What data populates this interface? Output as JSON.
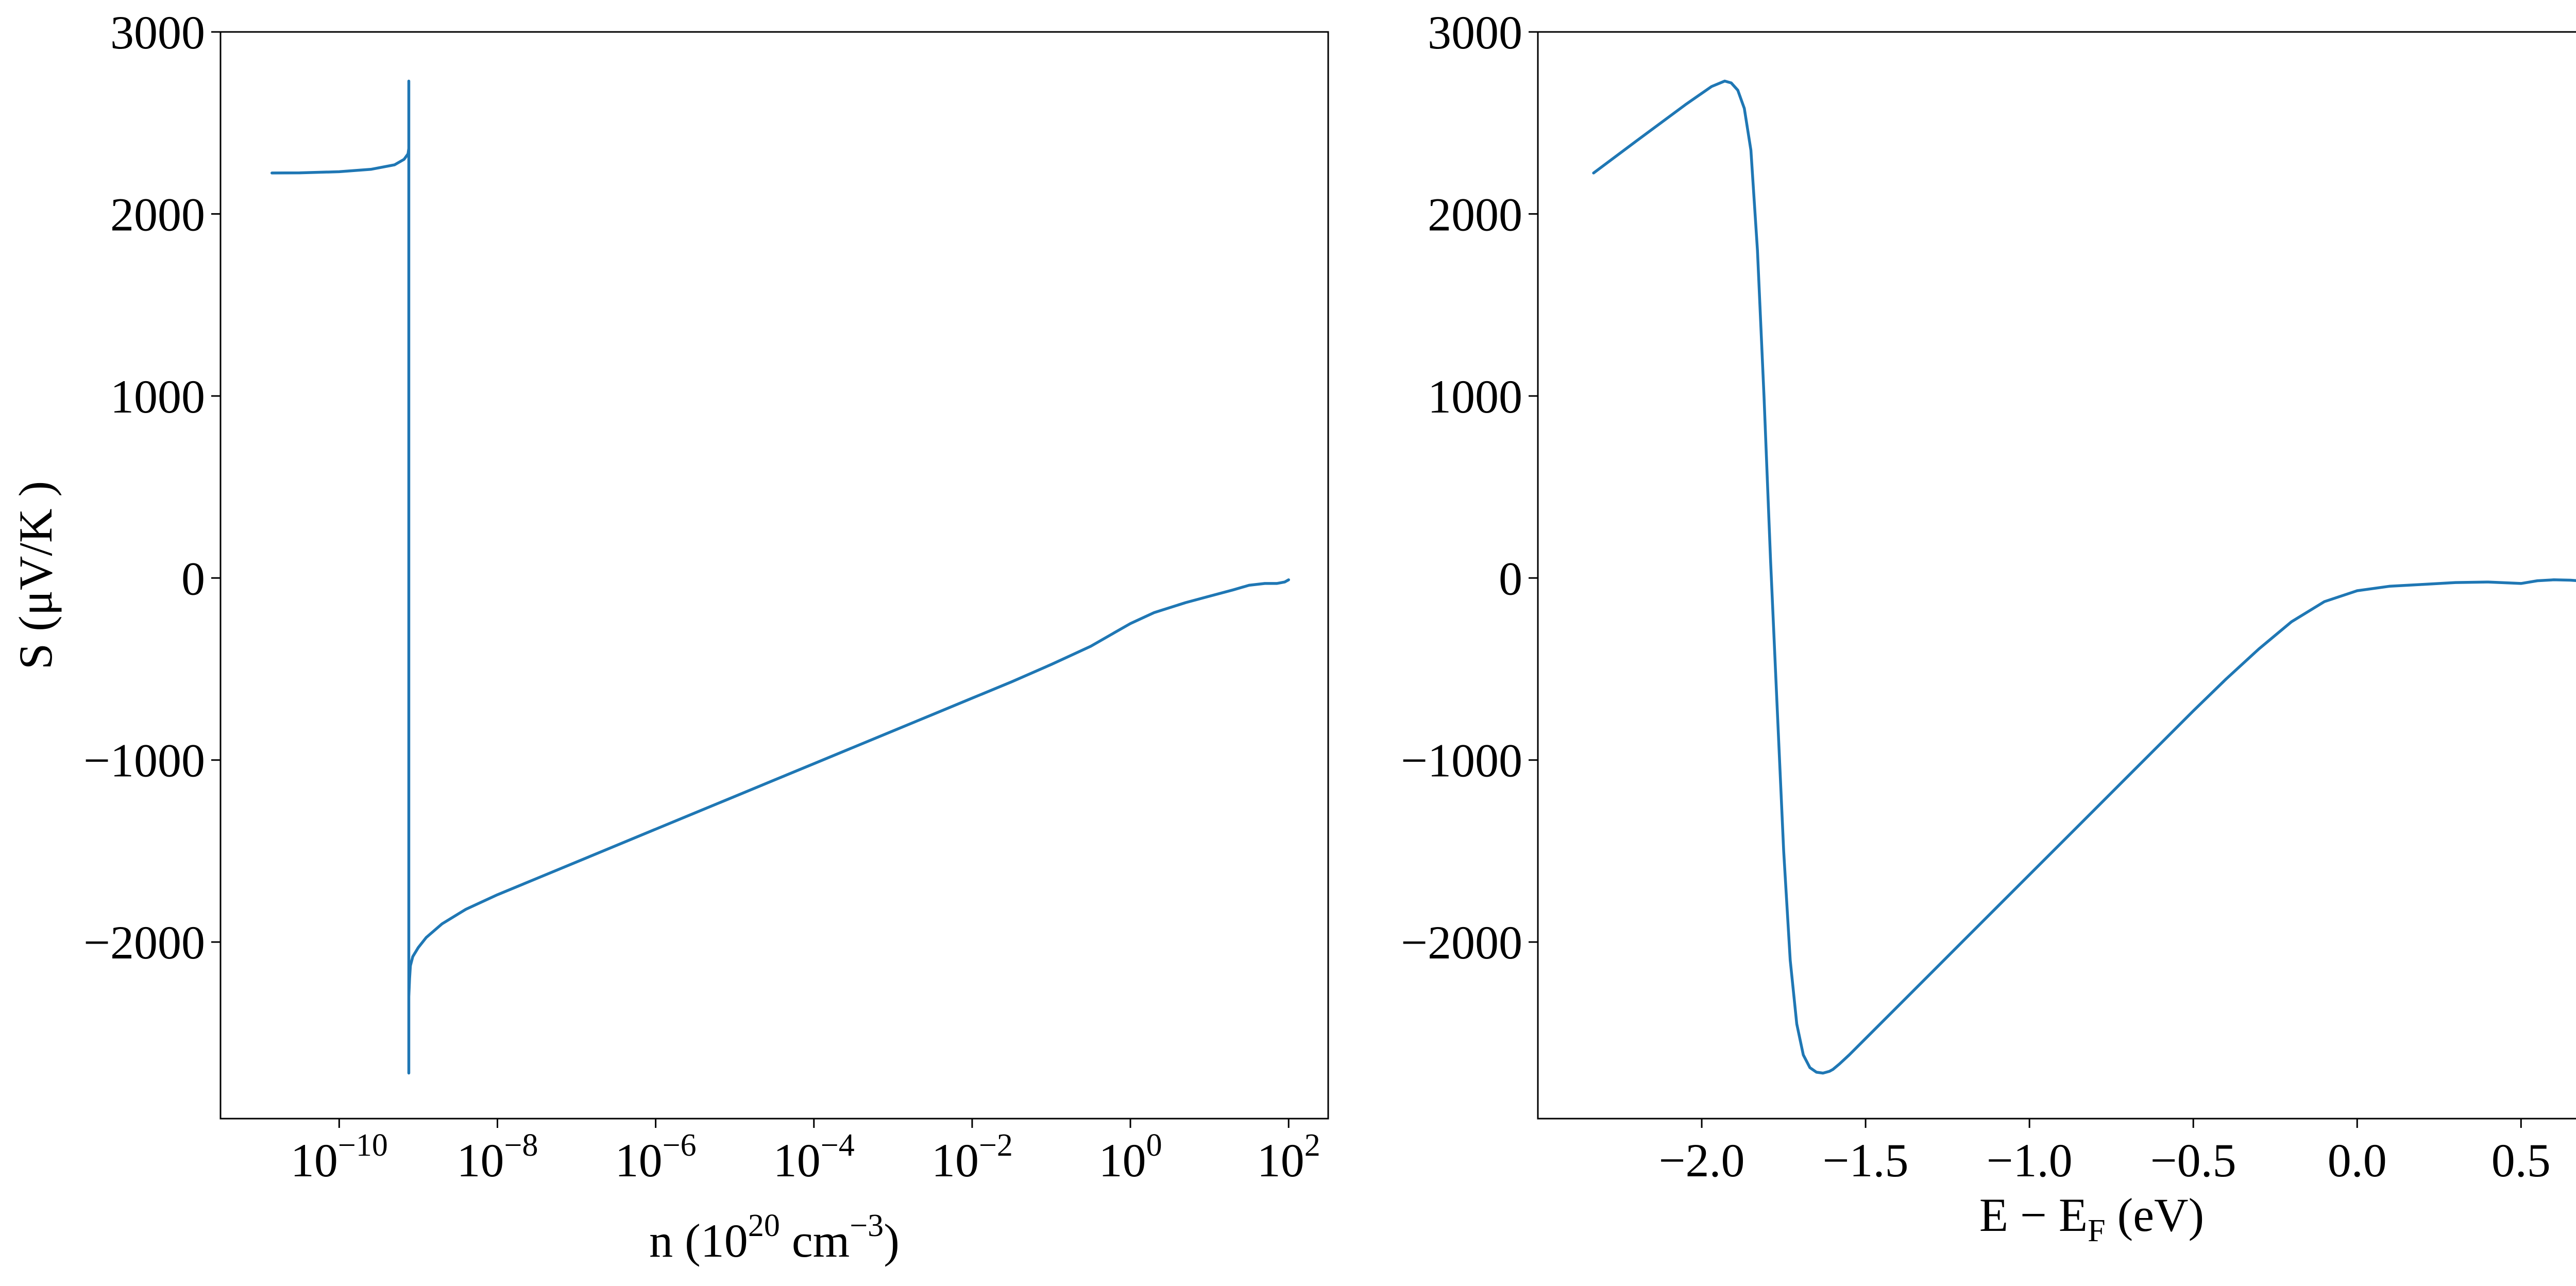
{
  "chart_data": [
    {
      "type": "line",
      "title": "",
      "xscale": "log",
      "xlabel": {
        "base": "n (10",
        "sup1": "20",
        "mid": " cm",
        "sup2": "−3",
        "end": ")"
      },
      "ylabel": "S (μV/K )",
      "xlim_log10": [
        -11.5,
        2.5
      ],
      "ylim": [
        -2970,
        3000
      ],
      "x_ticks": [
        {
          "exp": -10,
          "base": "10",
          "sup": "−10"
        },
        {
          "exp": -8,
          "base": "10",
          "sup": "−8"
        },
        {
          "exp": -6,
          "base": "10",
          "sup": "−6"
        },
        {
          "exp": -4,
          "base": "10",
          "sup": "−4"
        },
        {
          "exp": -2,
          "base": "10",
          "sup": "−2"
        },
        {
          "exp": 0,
          "base": "10",
          "sup": "0"
        },
        {
          "exp": 2,
          "base": "10",
          "sup": "2"
        }
      ],
      "y_ticks": [
        {
          "value": 3000,
          "label": "3000"
        },
        {
          "value": 2000,
          "label": "2000"
        },
        {
          "value": 1000,
          "label": "1000"
        },
        {
          "value": 0,
          "label": "0"
        },
        {
          "value": -1000,
          "label": "−1000"
        },
        {
          "value": -2000,
          "label": "−2000"
        }
      ],
      "series": [
        {
          "log10_x": [
            -10.85,
            -10.5,
            -10.0,
            -9.6,
            -9.3,
            -9.18,
            -9.13,
            -9.12,
            -9.12,
            -9.12,
            -9.12,
            -9.12,
            -9.11,
            -9.1,
            -9.07,
            -9.0,
            -8.9,
            -8.7,
            -8.4,
            -8.0,
            -7.5,
            -7.0,
            -6.5,
            -6.0,
            -5.5,
            -5.0,
            -4.5,
            -4.0,
            -3.5,
            -3.0,
            -2.5,
            -2.0,
            -1.5,
            -1.0,
            -0.5,
            -0.2,
            0.0,
            0.3,
            0.7,
            1.0,
            1.3,
            1.5,
            1.7,
            1.85,
            1.95,
            2.0
          ],
          "y": [
            2225,
            2226,
            2232,
            2245,
            2270,
            2300,
            2330,
            2360,
            2730,
            800,
            -2720,
            -2300,
            -2200,
            -2130,
            -2080,
            -2030,
            -1975,
            -1900,
            -1820,
            -1740,
            -1650,
            -1560,
            -1470,
            -1380,
            -1290,
            -1200,
            -1110,
            -1020,
            -930,
            -840,
            -750,
            -660,
            -570,
            -475,
            -375,
            -300,
            -250,
            -190,
            -135,
            -100,
            -65,
            -40,
            -30,
            -30,
            -22,
            -10
          ]
        }
      ]
    },
    {
      "type": "line",
      "title": "",
      "xlabel": {
        "base": "E − E",
        "sub": "F",
        "end": " (eV)"
      },
      "ylabel": "",
      "xlim": [
        -2.5,
        0.88
      ],
      "ylim": [
        -2970,
        3000
      ],
      "x_ticks": [
        {
          "value": -2.0,
          "label": "−2.0"
        },
        {
          "value": -1.5,
          "label": "−1.5"
        },
        {
          "value": -1.0,
          "label": "−1.0"
        },
        {
          "value": -0.5,
          "label": "−0.5"
        },
        {
          "value": 0.0,
          "label": "0.0"
        },
        {
          "value": 0.5,
          "label": "0.5"
        }
      ],
      "y_ticks": [
        {
          "value": 3000,
          "label": "3000"
        },
        {
          "value": 2000,
          "label": "2000"
        },
        {
          "value": 1000,
          "label": "1000"
        },
        {
          "value": 0,
          "label": "0"
        },
        {
          "value": -1000,
          "label": "−1000"
        },
        {
          "value": -2000,
          "label": "−2000"
        }
      ],
      "series": [
        {
          "x": [
            -2.33,
            -2.2,
            -2.05,
            -1.97,
            -1.93,
            -1.91,
            -1.89,
            -1.87,
            -1.85,
            -1.83,
            -1.81,
            -1.79,
            -1.77,
            -1.75,
            -1.73,
            -1.71,
            -1.69,
            -1.67,
            -1.65,
            -1.63,
            -1.61,
            -1.6,
            -1.58,
            -1.55,
            -1.5,
            -1.4,
            -1.3,
            -1.2,
            -1.1,
            -1.0,
            -0.9,
            -0.8,
            -0.7,
            -0.6,
            -0.5,
            -0.4,
            -0.3,
            -0.2,
            -0.1,
            0.0,
            0.1,
            0.2,
            0.3,
            0.4,
            0.5,
            0.55,
            0.6,
            0.65,
            0.7,
            0.73
          ],
          "y": [
            2225,
            2400,
            2600,
            2700,
            2730,
            2720,
            2680,
            2580,
            2350,
            1800,
            1000,
            100,
            -700,
            -1500,
            -2100,
            -2450,
            -2620,
            -2690,
            -2715,
            -2720,
            -2710,
            -2700,
            -2670,
            -2620,
            -2530,
            -2350,
            -2170,
            -1990,
            -1810,
            -1630,
            -1450,
            -1270,
            -1090,
            -910,
            -730,
            -555,
            -390,
            -240,
            -130,
            -70,
            -45,
            -35,
            -25,
            -22,
            -30,
            -15,
            -10,
            -12,
            -18,
            -10
          ]
        }
      ]
    }
  ]
}
